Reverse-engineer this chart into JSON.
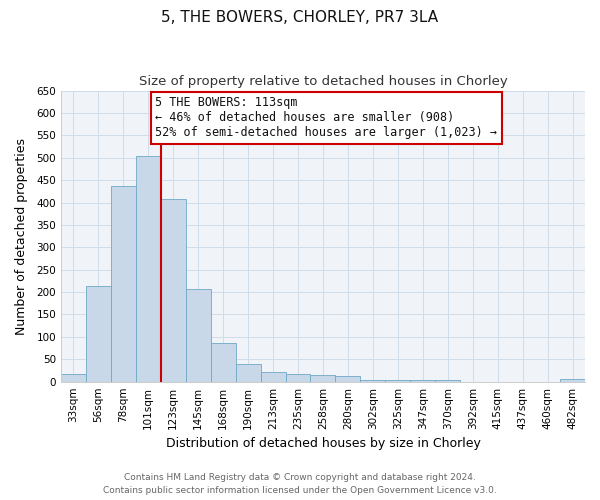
{
  "title": "5, THE BOWERS, CHORLEY, PR7 3LA",
  "subtitle": "Size of property relative to detached houses in Chorley",
  "xlabel": "Distribution of detached houses by size in Chorley",
  "ylabel": "Number of detached properties",
  "bin_labels": [
    "33sqm",
    "56sqm",
    "78sqm",
    "101sqm",
    "123sqm",
    "145sqm",
    "168sqm",
    "190sqm",
    "213sqm",
    "235sqm",
    "258sqm",
    "280sqm",
    "302sqm",
    "325sqm",
    "347sqm",
    "370sqm",
    "392sqm",
    "415sqm",
    "437sqm",
    "460sqm",
    "482sqm"
  ],
  "bar_heights": [
    18,
    213,
    437,
    503,
    408,
    207,
    87,
    40,
    22,
    18,
    15,
    12,
    3,
    3,
    3,
    3,
    0,
    0,
    0,
    0,
    5
  ],
  "bar_color": "#c8d8e8",
  "bar_edge_color": "#6fa8c8",
  "vline_color": "#cc0000",
  "vline_pos": 3.5,
  "annotation_line1": "5 THE BOWERS: 113sqm",
  "annotation_line2": "← 46% of detached houses are smaller (908)",
  "annotation_line3": "52% of semi-detached houses are larger (1,023) →",
  "annotation_box_color": "#ffffff",
  "annotation_box_edge": "#cc0000",
  "ylim": [
    0,
    650
  ],
  "yticks": [
    0,
    50,
    100,
    150,
    200,
    250,
    300,
    350,
    400,
    450,
    500,
    550,
    600,
    650
  ],
  "grid_color": "#d0dce8",
  "footer_line1": "Contains HM Land Registry data © Crown copyright and database right 2024.",
  "footer_line2": "Contains public sector information licensed under the Open Government Licence v3.0.",
  "title_fontsize": 11,
  "subtitle_fontsize": 9.5,
  "axis_label_fontsize": 9,
  "tick_fontsize": 7.5,
  "annotation_fontsize": 8.5,
  "footer_fontsize": 6.5
}
